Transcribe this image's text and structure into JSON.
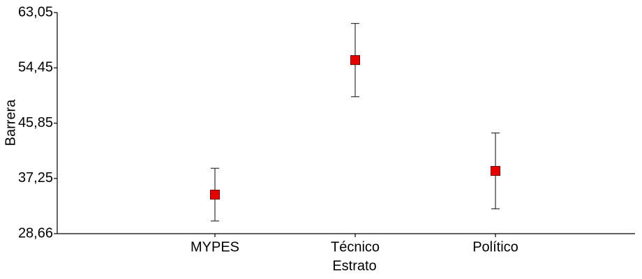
{
  "chart_data": {
    "type": "errorbar",
    "y_label": "Barrera",
    "x_label": "Estrato",
    "categories": [
      "MYPES",
      "Técnico",
      "Político"
    ],
    "values": [
      34.73,
      55.66,
      38.42
    ],
    "error": [
      4.1,
      5.7,
      5.9
    ],
    "color": "#e60000",
    "ylim": [
      28.66,
      63.05
    ],
    "yticks": [
      {
        "value": 28.66,
        "label": "28,66"
      },
      {
        "value": 37.25,
        "label": "37,25"
      },
      {
        "value": 45.85,
        "label": "45,85"
      },
      {
        "value": 54.45,
        "label": "54,45"
      },
      {
        "value": 63.05,
        "label": "63,05"
      }
    ]
  }
}
